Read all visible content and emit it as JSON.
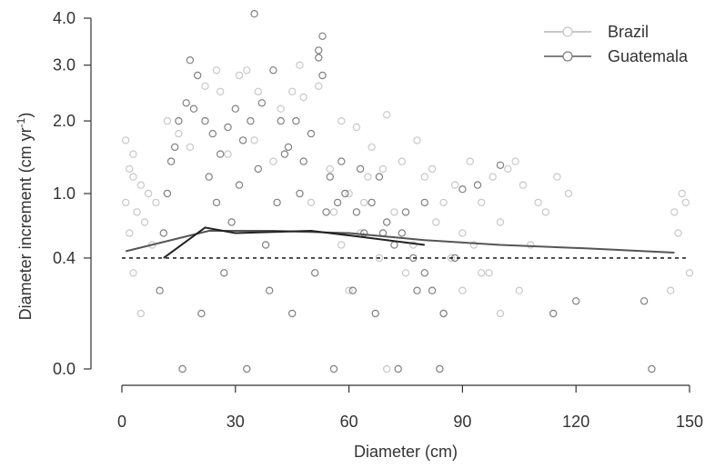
{
  "chart_data": {
    "type": "scatter",
    "xlabel": "Diameter (cm)",
    "ylabel": {
      "text": "Diameter increment (cm yr",
      "sup": "-1",
      "close": ")"
    },
    "xlim": [
      0,
      150
    ],
    "x_ticks": [
      0,
      30,
      60,
      90,
      120,
      150
    ],
    "x_tick_labels": [
      "0",
      "30",
      "60",
      "90",
      "120",
      "150"
    ],
    "y_ticks": [
      0.0,
      0.4,
      1.0,
      2.0,
      3.0,
      4.0
    ],
    "y_tick_labels": [
      "0.0",
      "0.4",
      "1.0",
      "2.0",
      "3.0",
      "4.0"
    ],
    "y_scale": "sqrt",
    "ylim": [
      0,
      4.0
    ],
    "reference_line": {
      "y": 0.4,
      "style": "dashed"
    },
    "legend_position": "top-right",
    "series": [
      {
        "name": "Brazil",
        "color": "#c8c8c8",
        "trend": {
          "x": [
            1,
            23,
            40,
            60,
            80,
            100,
            125,
            146
          ],
          "y": [
            0.45,
            0.62,
            0.62,
            0.6,
            0.54,
            0.5,
            0.47,
            0.44
          ]
        },
        "points": [
          [
            1,
            0.9
          ],
          [
            2,
            1.3
          ],
          [
            3,
            1.5
          ],
          [
            1,
            1.7
          ],
          [
            3,
            1.2
          ],
          [
            2,
            0.6
          ],
          [
            4,
            0.8
          ],
          [
            5,
            1.1
          ],
          [
            6,
            0.7
          ],
          [
            7,
            1.0
          ],
          [
            3,
            0.3
          ],
          [
            5,
            0.1
          ],
          [
            8,
            0.5
          ],
          [
            9,
            0.9
          ],
          [
            12,
            2.0
          ],
          [
            15,
            1.8
          ],
          [
            22,
            2.6
          ],
          [
            26,
            2.5
          ],
          [
            31,
            2.8
          ],
          [
            36,
            2.5
          ],
          [
            42,
            2.2
          ],
          [
            45,
            2.5
          ],
          [
            48,
            2.4
          ],
          [
            52,
            2.6
          ],
          [
            58,
            2.0
          ],
          [
            62,
            1.9
          ],
          [
            66,
            1.6
          ],
          [
            70,
            2.1
          ],
          [
            74,
            1.4
          ],
          [
            78,
            1.7
          ],
          [
            80,
            1.2
          ],
          [
            82,
            1.3
          ],
          [
            85,
            0.9
          ],
          [
            88,
            1.1
          ],
          [
            90,
            0.6
          ],
          [
            92,
            1.4
          ],
          [
            95,
            0.9
          ],
          [
            98,
            1.2
          ],
          [
            100,
            0.7
          ],
          [
            102,
            1.3
          ],
          [
            104,
            1.4
          ],
          [
            106,
            1.1
          ],
          [
            110,
            0.9
          ],
          [
            95,
            0.3
          ],
          [
            100,
            0.1
          ],
          [
            105,
            0.2
          ],
          [
            85,
            0.1
          ],
          [
            90,
            0.2
          ],
          [
            75,
            0.3
          ],
          [
            70,
            0.0
          ],
          [
            146,
            0.8
          ],
          [
            148,
            1.0
          ],
          [
            149,
            0.9
          ],
          [
            147,
            0.6
          ],
          [
            150,
            0.3
          ],
          [
            145,
            0.2
          ],
          [
            55,
            1.3
          ],
          [
            65,
            1.2
          ],
          [
            72,
            0.8
          ],
          [
            68,
            0.4
          ],
          [
            60,
            0.2
          ],
          [
            50,
            0.9
          ],
          [
            40,
            1.4
          ],
          [
            35,
            1.7
          ],
          [
            28,
            1.5
          ],
          [
            18,
            1.6
          ],
          [
            25,
            2.9
          ],
          [
            33,
            2.9
          ],
          [
            47,
            3.0
          ],
          [
            63,
            0.6
          ],
          [
            77,
            0.5
          ],
          [
            83,
            0.7
          ],
          [
            87,
            0.4
          ],
          [
            93,
            0.5
          ],
          [
            97,
            0.3
          ],
          [
            108,
            0.5
          ],
          [
            112,
            0.8
          ],
          [
            115,
            1.2
          ],
          [
            118,
            1.0
          ],
          [
            60,
            1.0
          ],
          [
            58,
            0.5
          ],
          [
            56,
            0.8
          ],
          [
            64,
            0.9
          ],
          [
            69,
            1.3
          ]
        ]
      },
      {
        "name": "Guatemala",
        "color": "#808080",
        "trend": {
          "x": [
            11,
            22,
            30,
            50,
            60,
            80
          ],
          "y": [
            0.4,
            0.65,
            0.6,
            0.62,
            0.58,
            0.5
          ]
        },
        "points": [
          [
            10,
            0.2
          ],
          [
            11,
            0.6
          ],
          [
            12,
            1.0
          ],
          [
            13,
            1.4
          ],
          [
            14,
            1.6
          ],
          [
            15,
            2.0
          ],
          [
            17,
            2.3
          ],
          [
            19,
            2.2
          ],
          [
            18,
            3.1
          ],
          [
            20,
            2.8
          ],
          [
            22,
            2.0
          ],
          [
            24,
            1.8
          ],
          [
            26,
            1.5
          ],
          [
            28,
            1.9
          ],
          [
            30,
            2.2
          ],
          [
            32,
            1.7
          ],
          [
            34,
            2.0
          ],
          [
            35,
            4.1
          ],
          [
            37,
            2.3
          ],
          [
            40,
            2.9
          ],
          [
            42,
            2.0
          ],
          [
            44,
            1.6
          ],
          [
            46,
            2.0
          ],
          [
            48,
            1.4
          ],
          [
            50,
            1.8
          ],
          [
            52,
            3.3
          ],
          [
            53,
            3.6
          ],
          [
            52,
            3.15
          ],
          [
            53,
            2.8
          ],
          [
            55,
            1.2
          ],
          [
            57,
            0.9
          ],
          [
            59,
            1.0
          ],
          [
            62,
            0.8
          ],
          [
            64,
            0.6
          ],
          [
            66,
            0.9
          ],
          [
            68,
            1.2
          ],
          [
            70,
            0.7
          ],
          [
            72,
            0.5
          ],
          [
            74,
            0.6
          ],
          [
            77,
            0.4
          ],
          [
            80,
            0.3
          ],
          [
            82,
            0.2
          ],
          [
            85,
            0.1
          ],
          [
            88,
            0.4
          ],
          [
            90,
            1.05
          ],
          [
            94,
            1.1
          ],
          [
            100,
            1.35
          ],
          [
            114,
            0.1
          ],
          [
            120,
            0.15
          ],
          [
            138,
            0.15
          ],
          [
            140,
            0.0
          ],
          [
            16,
            0.0
          ],
          [
            21,
            0.1
          ],
          [
            27,
            0.3
          ],
          [
            33,
            0.0
          ],
          [
            39,
            0.2
          ],
          [
            45,
            0.1
          ],
          [
            51,
            0.3
          ],
          [
            56,
            0.0
          ],
          [
            61,
            0.2
          ],
          [
            67,
            0.1
          ],
          [
            73,
            0.0
          ],
          [
            78,
            0.2
          ],
          [
            84,
            0.0
          ],
          [
            25,
            0.9
          ],
          [
            31,
            1.1
          ],
          [
            36,
            1.3
          ],
          [
            41,
            0.9
          ],
          [
            47,
            1.0
          ],
          [
            54,
            0.8
          ],
          [
            58,
            1.4
          ],
          [
            63,
            1.3
          ],
          [
            69,
            0.6
          ],
          [
            75,
            0.8
          ],
          [
            80,
            0.9
          ],
          [
            23,
            1.2
          ],
          [
            29,
            0.7
          ],
          [
            38,
            0.5
          ],
          [
            43,
            1.5
          ]
        ]
      }
    ]
  }
}
